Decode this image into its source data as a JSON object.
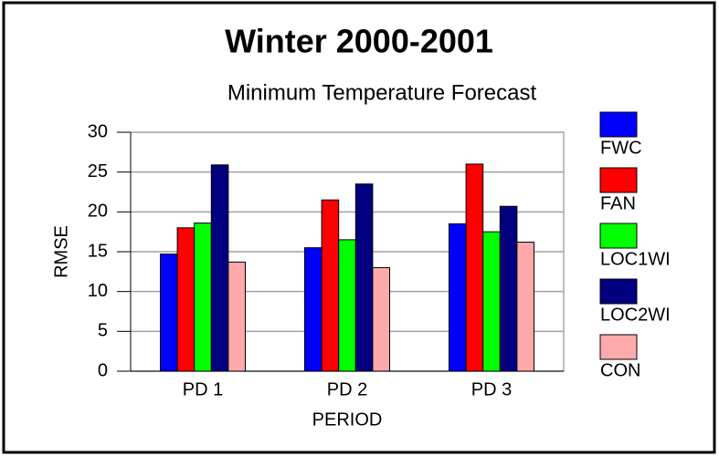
{
  "chart_data": {
    "type": "bar",
    "title": "Winter 2000-2001",
    "subtitle": "Minimum Temperature Forecast",
    "x_label": "PERIOD",
    "y_label": "RMSE",
    "categories": [
      "PD 1",
      "PD 2",
      "PD 3"
    ],
    "series": [
      {
        "name": "FWC",
        "color": "#0000ff",
        "values": [
          14.7,
          15.5,
          18.5
        ]
      },
      {
        "name": "FAN",
        "color": "#ff0000",
        "values": [
          18,
          21.5,
          26
        ]
      },
      {
        "name": "LOC1WI",
        "color": "#00ff00",
        "values": [
          18.6,
          16.5,
          17.5
        ]
      },
      {
        "name": "LOC2WI",
        "color": "#000080",
        "values": [
          25.9,
          23.5,
          20.7
        ]
      },
      {
        "name": "CON",
        "color": "#ffaaaa",
        "values": [
          13.7,
          13,
          16.2
        ]
      }
    ],
    "ylim": [
      0,
      30
    ],
    "yticks": [
      0,
      5,
      10,
      15,
      20,
      25,
      30
    ],
    "grid": true,
    "legend": "right"
  }
}
